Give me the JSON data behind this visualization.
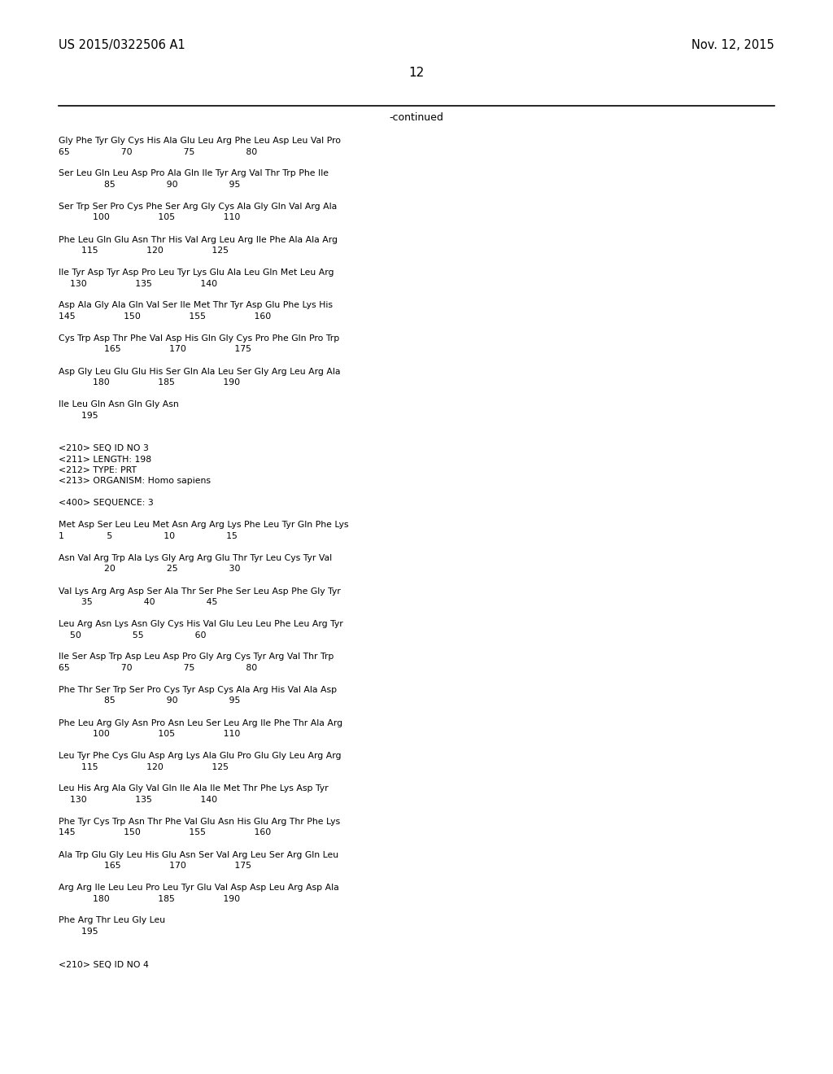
{
  "background_color": "#ffffff",
  "header_left": "US 2015/0322506 A1",
  "header_right": "Nov. 12, 2015",
  "page_number": "12",
  "continued_label": "-continued",
  "body_lines": [
    "Gly Phe Tyr Gly Cys His Ala Glu Leu Arg Phe Leu Asp Leu Val Pro",
    "65                  70                  75                  80",
    "",
    "Ser Leu Gln Leu Asp Pro Ala Gln Ile Tyr Arg Val Thr Trp Phe Ile",
    "                85                  90                  95",
    "",
    "Ser Trp Ser Pro Cys Phe Ser Arg Gly Cys Ala Gly Gln Val Arg Ala",
    "            100                 105                 110",
    "",
    "Phe Leu Gln Glu Asn Thr His Val Arg Leu Arg Ile Phe Ala Ala Arg",
    "        115                 120                 125",
    "",
    "Ile Tyr Asp Tyr Asp Pro Leu Tyr Lys Glu Ala Leu Gln Met Leu Arg",
    "    130                 135                 140",
    "",
    "Asp Ala Gly Ala Gln Val Ser Ile Met Thr Tyr Asp Glu Phe Lys His",
    "145                 150                 155                 160",
    "",
    "Cys Trp Asp Thr Phe Val Asp His Gln Gly Cys Pro Phe Gln Pro Trp",
    "                165                 170                 175",
    "",
    "Asp Gly Leu Glu Glu His Ser Gln Ala Leu Ser Gly Arg Leu Arg Ala",
    "            180                 185                 190",
    "",
    "Ile Leu Gln Asn Gln Gly Asn",
    "        195",
    "",
    "",
    "<210> SEQ ID NO 3",
    "<211> LENGTH: 198",
    "<212> TYPE: PRT",
    "<213> ORGANISM: Homo sapiens",
    "",
    "<400> SEQUENCE: 3",
    "",
    "Met Asp Ser Leu Leu Met Asn Arg Arg Lys Phe Leu Tyr Gln Phe Lys",
    "1               5                  10                  15",
    "",
    "Asn Val Arg Trp Ala Lys Gly Arg Arg Glu Thr Tyr Leu Cys Tyr Val",
    "                20                  25                  30",
    "",
    "Val Lys Arg Arg Asp Ser Ala Thr Ser Phe Ser Leu Asp Phe Gly Tyr",
    "        35                  40                  45",
    "",
    "Leu Arg Asn Lys Asn Gly Cys His Val Glu Leu Leu Phe Leu Arg Tyr",
    "    50                  55                  60",
    "",
    "Ile Ser Asp Trp Asp Leu Asp Pro Gly Arg Cys Tyr Arg Val Thr Trp",
    "65                  70                  75                  80",
    "",
    "Phe Thr Ser Trp Ser Pro Cys Tyr Asp Cys Ala Arg His Val Ala Asp",
    "                85                  90                  95",
    "",
    "Phe Leu Arg Gly Asn Pro Asn Leu Ser Leu Arg Ile Phe Thr Ala Arg",
    "            100                 105                 110",
    "",
    "Leu Tyr Phe Cys Glu Asp Arg Lys Ala Glu Pro Glu Gly Leu Arg Arg",
    "        115                 120                 125",
    "",
    "Leu His Arg Ala Gly Val Gln Ile Ala Ile Met Thr Phe Lys Asp Tyr",
    "    130                 135                 140",
    "",
    "Phe Tyr Cys Trp Asn Thr Phe Val Glu Asn His Glu Arg Thr Phe Lys",
    "145                 150                 155                 160",
    "",
    "Ala Trp Glu Gly Leu His Glu Asn Ser Val Arg Leu Ser Arg Gln Leu",
    "                165                 170                 175",
    "",
    "Arg Arg Ile Leu Leu Pro Leu Tyr Glu Val Asp Asp Leu Arg Asp Ala",
    "            180                 185                 190",
    "",
    "Phe Arg Thr Leu Gly Leu",
    "        195",
    "",
    "",
    "<210> SEQ ID NO 4"
  ],
  "line_color": "#000000",
  "font_size_header": 10.5,
  "font_size_page": 11,
  "font_size_continued": 9,
  "font_size_body": 7.8
}
